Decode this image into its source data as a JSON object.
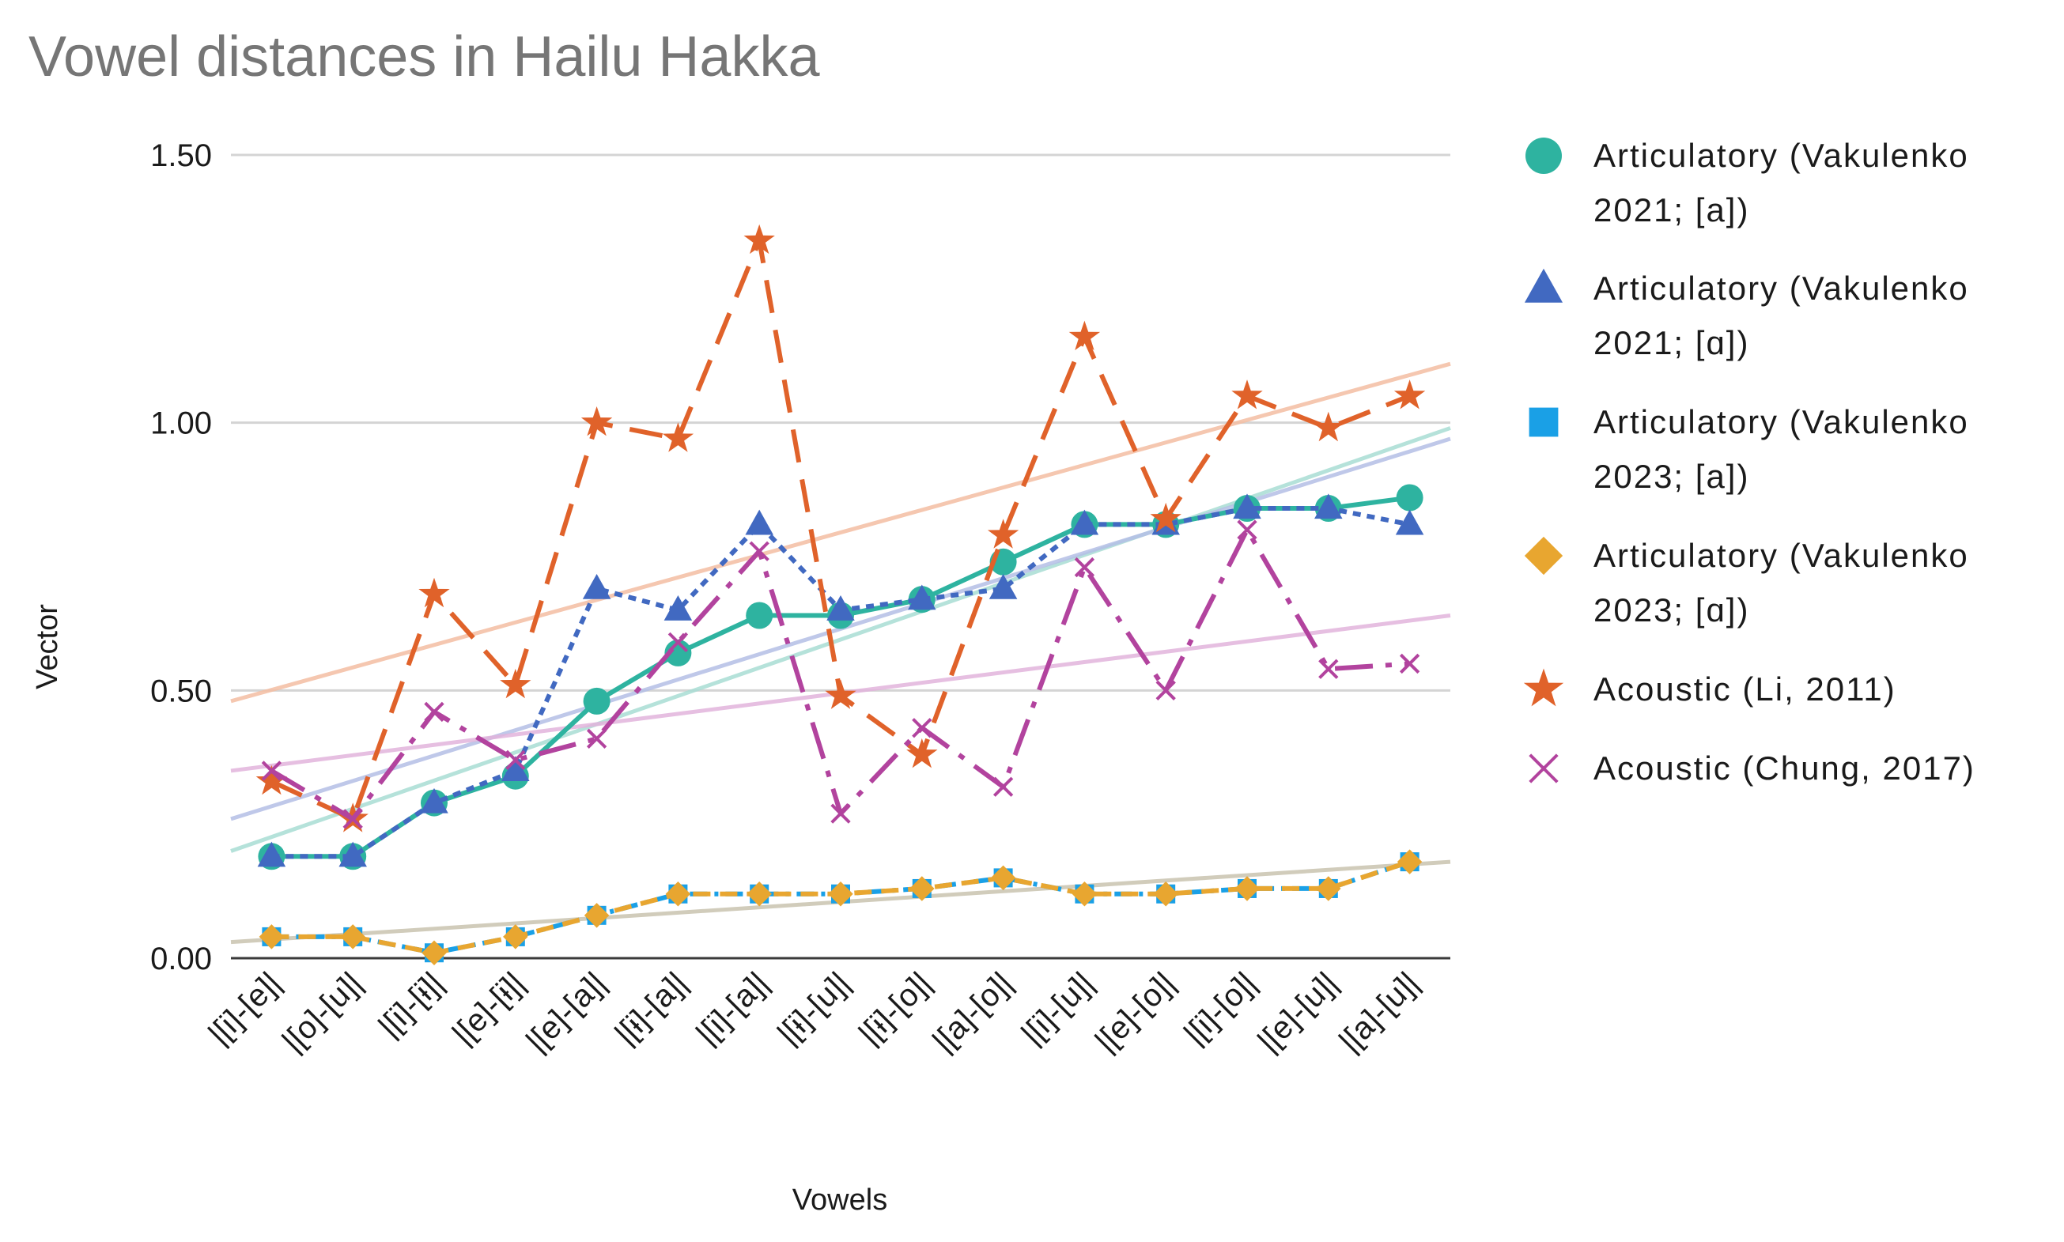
{
  "chart_data": {
    "type": "line",
    "title": "Vowel distances in Hailu Hakka",
    "xlabel": "Vowels",
    "ylabel": "Vector",
    "ylim": [
      0,
      1.5
    ],
    "yticks": [
      "0.00",
      "0.50",
      "1.00",
      "1.50"
    ],
    "ytick_values": [
      0,
      0.5,
      1.0,
      1.5
    ],
    "grid": true,
    "legend_position": "right",
    "categories": [
      "|[i]-[e]|",
      "|[o]-[u]|",
      "|[i]-[ɨ]|",
      "|[e]-[ɨ]|",
      "|[e]-[a]|",
      "|[ɨ]-[a]|",
      "|[i]-[a]|",
      "|[ɨ]-[u]|",
      "|[ɨ]-[o]|",
      "|[a]-[o]|",
      "|[i]-[u]|",
      "|[e]-[o]|",
      "|[i]-[o]|",
      "|[e]-[u]|",
      "|[a]-[u]|"
    ],
    "series": [
      {
        "name": "Articulatory (Vakulenko 2021; [a])",
        "legend_lines": [
          "Articulatory (Vakulenko",
          "2021; [a])"
        ],
        "marker": "circle",
        "color": "#2eb3a0",
        "dash": "solid",
        "trend": {
          "start": 0.2,
          "end": 0.99,
          "color": "#a9ddd4"
        },
        "values": [
          0.19,
          0.19,
          0.29,
          0.34,
          0.48,
          0.57,
          0.64,
          0.64,
          0.67,
          0.74,
          0.81,
          0.81,
          0.84,
          0.84,
          0.86
        ]
      },
      {
        "name": "Articulatory (Vakulenko 2021; [ɑ])",
        "legend_lines": [
          "Articulatory (Vakulenko",
          "2021; [ɑ])"
        ],
        "marker": "triangle",
        "color": "#4169c1",
        "dash": "short",
        "trend": {
          "start": 0.26,
          "end": 0.97,
          "color": "#b4bfe6"
        },
        "values": [
          0.19,
          0.19,
          0.29,
          0.35,
          0.69,
          0.65,
          0.81,
          0.65,
          0.67,
          0.69,
          0.81,
          0.81,
          0.84,
          0.84,
          0.81
        ]
      },
      {
        "name": "Articulatory (Vakulenko 2023; [a])",
        "legend_lines": [
          "Articulatory (Vakulenko",
          "2023; [a])"
        ],
        "marker": "square",
        "color": "#1aa0e6",
        "dash": "dashdot",
        "trend": {
          "start": 0.03,
          "end": 0.18,
          "color": "#c9c4b0"
        },
        "values": [
          0.04,
          0.04,
          0.01,
          0.04,
          0.08,
          0.12,
          0.12,
          0.12,
          0.13,
          0.15,
          0.12,
          0.12,
          0.13,
          0.13,
          0.18
        ]
      },
      {
        "name": "Articulatory (Vakulenko 2023; [ɑ])",
        "legend_lines": [
          "Articulatory (Vakulenko",
          "2023; [ɑ])"
        ],
        "marker": "diamond",
        "color": "#e8a630",
        "dash": "long",
        "trend": {
          "start": 0.03,
          "end": 0.18,
          "color": "#c9c4b0"
        },
        "values": [
          0.04,
          0.04,
          0.01,
          0.04,
          0.08,
          0.12,
          0.12,
          0.12,
          0.13,
          0.15,
          0.12,
          0.12,
          0.13,
          0.13,
          0.18
        ]
      },
      {
        "name": "Acoustic (Li, 2011)",
        "legend_lines": [
          "Acoustic (Li, 2011)"
        ],
        "marker": "star",
        "color": "#e0622a",
        "dash": "longdash",
        "trend": {
          "start": 0.48,
          "end": 1.11,
          "color": "#f4bea3"
        },
        "values": [
          0.33,
          0.26,
          0.68,
          0.51,
          1.0,
          0.97,
          1.34,
          0.49,
          0.38,
          0.79,
          1.16,
          0.82,
          1.05,
          0.99,
          1.05
        ]
      },
      {
        "name": "Acoustic (Chung, 2017)",
        "legend_lines": [
          "Acoustic (Chung, 2017)"
        ],
        "marker": "cross",
        "color": "#b2439e",
        "dash": "longdashdot",
        "trend": {
          "start": 0.35,
          "end": 0.64,
          "color": "#e2b4dc"
        },
        "values": [
          0.35,
          0.26,
          0.46,
          0.37,
          0.41,
          0.59,
          0.76,
          0.27,
          0.43,
          0.32,
          0.73,
          0.5,
          0.8,
          0.54,
          0.55
        ]
      }
    ]
  }
}
